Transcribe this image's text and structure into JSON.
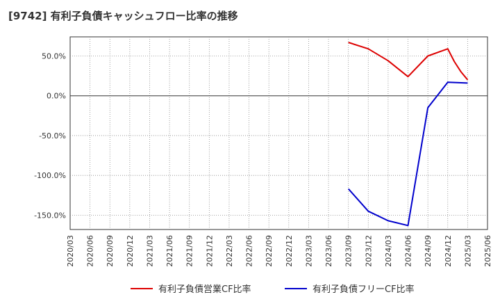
{
  "chart_data": {
    "type": "line",
    "title": "[9742]  有利子負債キャッシュフロー比率の推移",
    "xlabel": "",
    "ylabel": "",
    "x_ticks": [
      "2020/03",
      "2020/06",
      "2020/09",
      "2020/12",
      "2021/03",
      "2021/06",
      "2021/09",
      "2021/12",
      "2022/03",
      "2022/06",
      "2022/09",
      "2022/12",
      "2023/03",
      "2023/06",
      "2023/09",
      "2023/12",
      "2024/03",
      "2024/06",
      "2024/09",
      "2024/12",
      "2025/03",
      "2025/06"
    ],
    "y_ticks": [
      {
        "value": 50,
        "label": "50.0%"
      },
      {
        "value": 0,
        "label": "0.0%"
      },
      {
        "value": -50,
        "label": "-50.0%"
      },
      {
        "value": -100,
        "label": "-100.0%"
      },
      {
        "value": -150,
        "label": "-150.0%"
      }
    ],
    "ylim": [
      -168,
      74
    ],
    "grid": true,
    "legend_position": "bottom",
    "series": [
      {
        "name": "有利子負債営業CF比率",
        "color": "#dd0000",
        "points": [
          {
            "x": 14,
            "y": 67
          },
          {
            "x": 15,
            "y": 59
          },
          {
            "x": 16,
            "y": 44
          },
          {
            "x": 17,
            "y": 24
          },
          {
            "x": 18,
            "y": 50
          },
          {
            "x": 19,
            "y": 59
          },
          {
            "x": 19.33,
            "y": 43
          },
          {
            "x": 19.67,
            "y": 30
          },
          {
            "x": 20,
            "y": 20
          }
        ]
      },
      {
        "name": "有利子負債フリーCF比率",
        "color": "#0000cc",
        "points": [
          {
            "x": 14,
            "y": -117
          },
          {
            "x": 15,
            "y": -145
          },
          {
            "x": 16,
            "y": -157
          },
          {
            "x": 17,
            "y": -163
          },
          {
            "x": 18,
            "y": -15
          },
          {
            "x": 19,
            "y": 17
          },
          {
            "x": 20,
            "y": 16
          }
        ]
      }
    ]
  }
}
